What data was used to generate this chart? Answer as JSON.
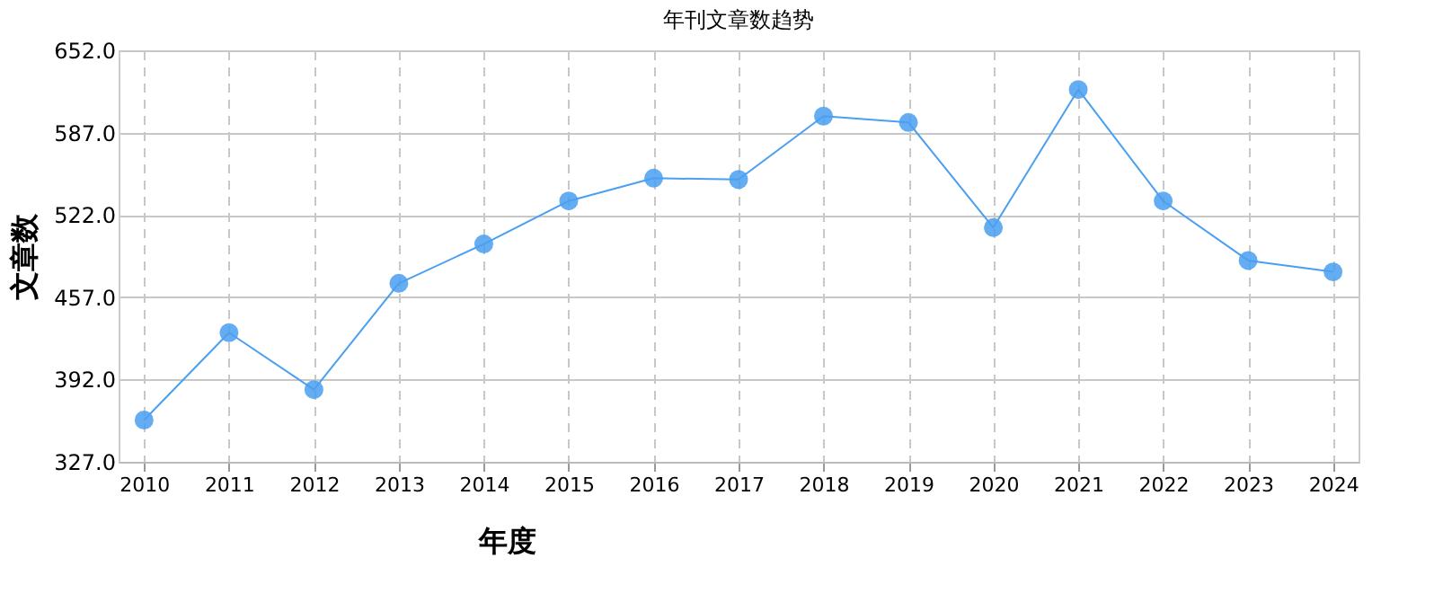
{
  "chart_data": {
    "type": "line",
    "title": "年刊文章数趋势",
    "xlabel": "年度",
    "ylabel": "文章数",
    "categories": [
      "2010",
      "2011",
      "2012",
      "2013",
      "2014",
      "2015",
      "2016",
      "2017",
      "2018",
      "2019",
      "2020",
      "2021",
      "2022",
      "2023",
      "2024"
    ],
    "series": [
      {
        "color": "#4a9ff0",
        "values": [
          360,
          429,
          384,
          468,
          499,
          533,
          551,
          550,
          600,
          595,
          512,
          621,
          533,
          486,
          477
        ]
      }
    ],
    "ylim": [
      327,
      652
    ],
    "yticks": [
      {
        "value": 327,
        "label": "327.0"
      },
      {
        "value": 392,
        "label": "392.0"
      },
      {
        "value": 457,
        "label": "457.0"
      },
      {
        "value": 522,
        "label": "522.0"
      },
      {
        "value": 587,
        "label": "587.0"
      },
      {
        "value": 652,
        "label": "652.0"
      }
    ],
    "grid": true,
    "marker": "circle",
    "line_style": "solid"
  }
}
